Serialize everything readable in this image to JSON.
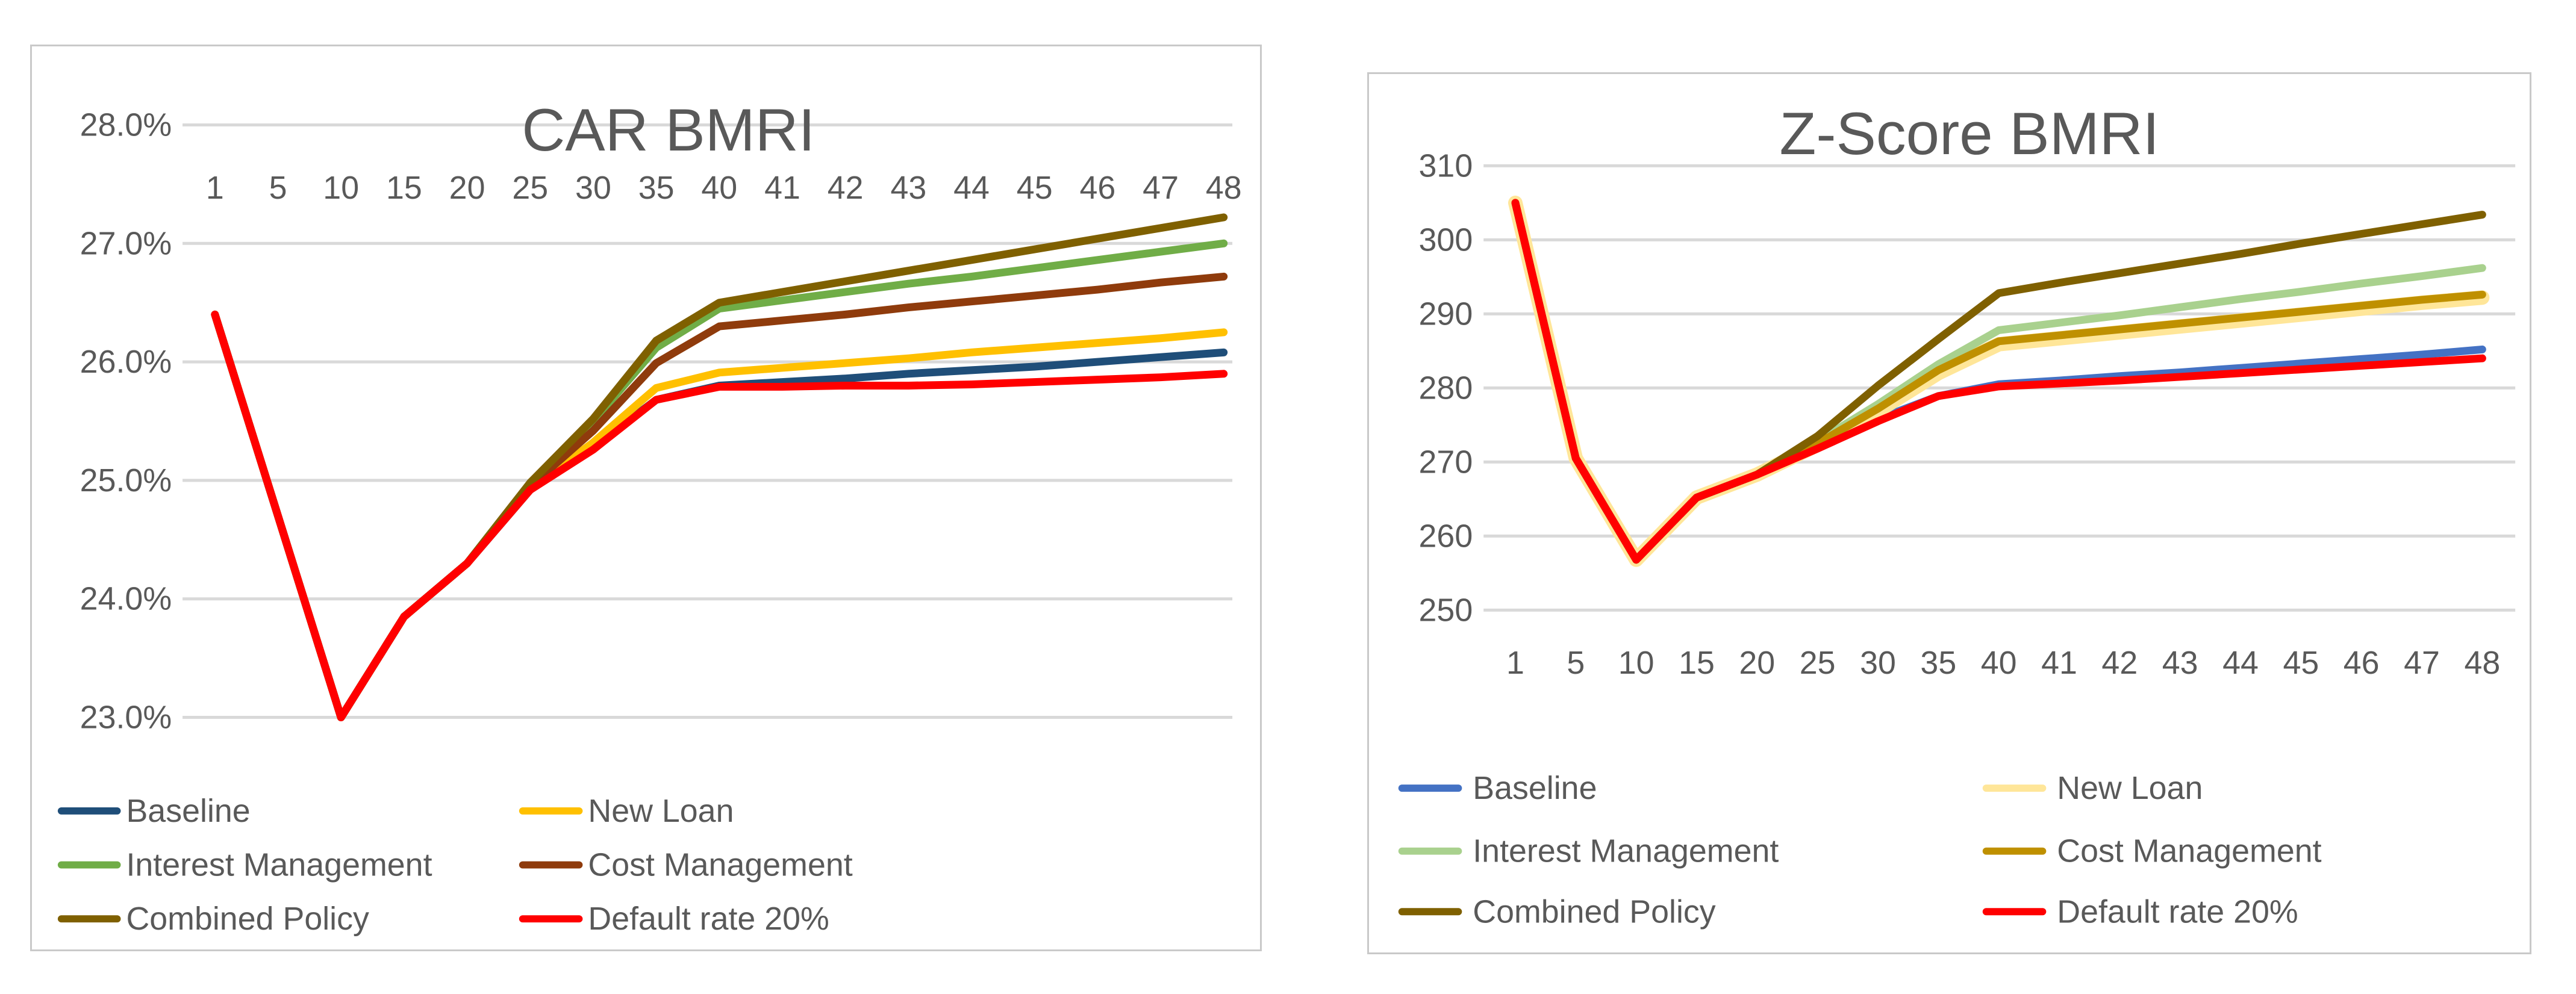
{
  "chart_data": [
    {
      "type": "line",
      "title": "CAR BMRI",
      "categories": [
        "1",
        "5",
        "10",
        "15",
        "20",
        "25",
        "30",
        "35",
        "40",
        "41",
        "42",
        "43",
        "44",
        "45",
        "46",
        "47",
        "48"
      ],
      "x_axis": {
        "label_position": "top"
      },
      "y_axis": {
        "min": 23.0,
        "max": 28.0,
        "step": 1.0,
        "tick_labels": [
          "28.0%",
          "27.0%",
          "26.0%",
          "25.0%",
          "24.0%",
          "23.0%"
        ]
      },
      "grid": true,
      "legend_position": "bottom-two-columns",
      "colors": {
        "grid": "#D9D9D9",
        "text": "#595959",
        "border": "#C9C9C9"
      },
      "series": [
        {
          "name": "Baseline",
          "color": "#1F4E79",
          "line_width": 13,
          "values": [
            26.4,
            24.7,
            23.0,
            23.85,
            24.3,
            24.92,
            25.28,
            25.68,
            25.8,
            25.83,
            25.86,
            25.9,
            25.93,
            25.96,
            26.0,
            26.04,
            26.08
          ]
        },
        {
          "name": "New Loan",
          "color": "#FFC000",
          "line_width": 13,
          "values": [
            26.4,
            24.7,
            23.0,
            23.85,
            24.3,
            24.93,
            25.32,
            25.78,
            25.91,
            25.95,
            25.99,
            26.03,
            26.08,
            26.12,
            26.16,
            26.2,
            26.25
          ]
        },
        {
          "name": "Interest Management",
          "color": "#70AD47",
          "line_width": 13,
          "values": [
            26.4,
            24.7,
            23.0,
            23.85,
            24.3,
            24.97,
            25.5,
            26.12,
            26.45,
            26.52,
            26.59,
            26.66,
            26.72,
            26.79,
            26.86,
            26.93,
            27.0
          ]
        },
        {
          "name": "Cost Management",
          "color": "#8F3B0C",
          "line_width": 13,
          "values": [
            26.4,
            24.7,
            23.0,
            23.85,
            24.3,
            24.95,
            25.42,
            25.99,
            26.3,
            26.35,
            26.4,
            26.46,
            26.51,
            26.56,
            26.61,
            26.67,
            26.72
          ]
        },
        {
          "name": "Combined Policy",
          "color": "#7F6000",
          "line_width": 13,
          "values": [
            26.4,
            24.7,
            23.0,
            23.85,
            24.3,
            24.98,
            25.52,
            26.18,
            26.5,
            26.59,
            26.68,
            26.77,
            26.86,
            26.95,
            27.04,
            27.13,
            27.22
          ]
        },
        {
          "name": "Default rate 20%",
          "color": "#FF0000",
          "line_width": 13,
          "values": [
            26.4,
            24.7,
            23.0,
            23.85,
            24.3,
            24.92,
            25.26,
            25.68,
            25.79,
            25.79,
            25.8,
            25.8,
            25.81,
            25.83,
            25.85,
            25.87,
            25.9
          ]
        }
      ]
    },
    {
      "type": "line",
      "title": "Z-Score BMRI",
      "categories": [
        "1",
        "5",
        "10",
        "15",
        "20",
        "25",
        "30",
        "35",
        "40",
        "41",
        "42",
        "43",
        "44",
        "45",
        "46",
        "47",
        "48"
      ],
      "x_axis": {
        "label_position": "bottom"
      },
      "y_axis": {
        "min": 250,
        "max": 310,
        "step": 10,
        "tick_labels": [
          "310",
          "300",
          "290",
          "280",
          "270",
          "260",
          "250"
        ]
      },
      "grid": true,
      "legend_position": "bottom-two-columns",
      "colors": {
        "grid": "#D9D9D9",
        "text": "#595959",
        "border": "#C9C9C9"
      },
      "series": [
        {
          "name": "Baseline",
          "color": "#4472C4",
          "line_width": 13,
          "values": [
            305,
            270.5,
            256.8,
            265.2,
            268.3,
            272.0,
            275.8,
            278.9,
            280.5,
            281.0,
            281.6,
            282.1,
            282.7,
            283.3,
            283.9,
            284.5,
            285.2
          ]
        },
        {
          "name": "New Loan",
          "color": "#FFE699",
          "line_width": 24,
          "values": [
            305,
            270.5,
            256.8,
            265.2,
            268.3,
            272.3,
            276.9,
            282.0,
            285.9,
            286.7,
            287.5,
            288.3,
            289.1,
            289.9,
            290.7,
            291.5,
            292.2
          ]
        },
        {
          "name": "Interest Management",
          "color": "#A9D18E",
          "line_width": 13,
          "values": [
            305,
            270.5,
            256.8,
            265.2,
            268.3,
            272.8,
            277.8,
            283.2,
            287.8,
            288.8,
            289.8,
            290.9,
            292.0,
            293.0,
            294.1,
            295.1,
            296.2
          ]
        },
        {
          "name": "Cost Management",
          "color": "#BF9000",
          "line_width": 13,
          "values": [
            305,
            270.5,
            256.8,
            265.2,
            268.3,
            272.5,
            277.2,
            282.4,
            286.3,
            287.1,
            287.9,
            288.7,
            289.5,
            290.3,
            291.1,
            291.9,
            292.6
          ]
        },
        {
          "name": "Combined Policy",
          "color": "#7F6000",
          "line_width": 13,
          "values": [
            305,
            270.5,
            256.8,
            265.2,
            268.3,
            273.5,
            280.3,
            286.6,
            292.8,
            294.2,
            295.5,
            296.8,
            298.1,
            299.5,
            300.8,
            302.1,
            303.4
          ]
        },
        {
          "name": "Default rate 20%",
          "color": "#FF0000",
          "line_width": 13,
          "values": [
            305,
            270.5,
            256.8,
            265.2,
            268.3,
            271.8,
            275.5,
            278.9,
            280.2,
            280.6,
            281.0,
            281.5,
            282.0,
            282.5,
            283.0,
            283.5,
            284.0
          ]
        }
      ]
    }
  ]
}
